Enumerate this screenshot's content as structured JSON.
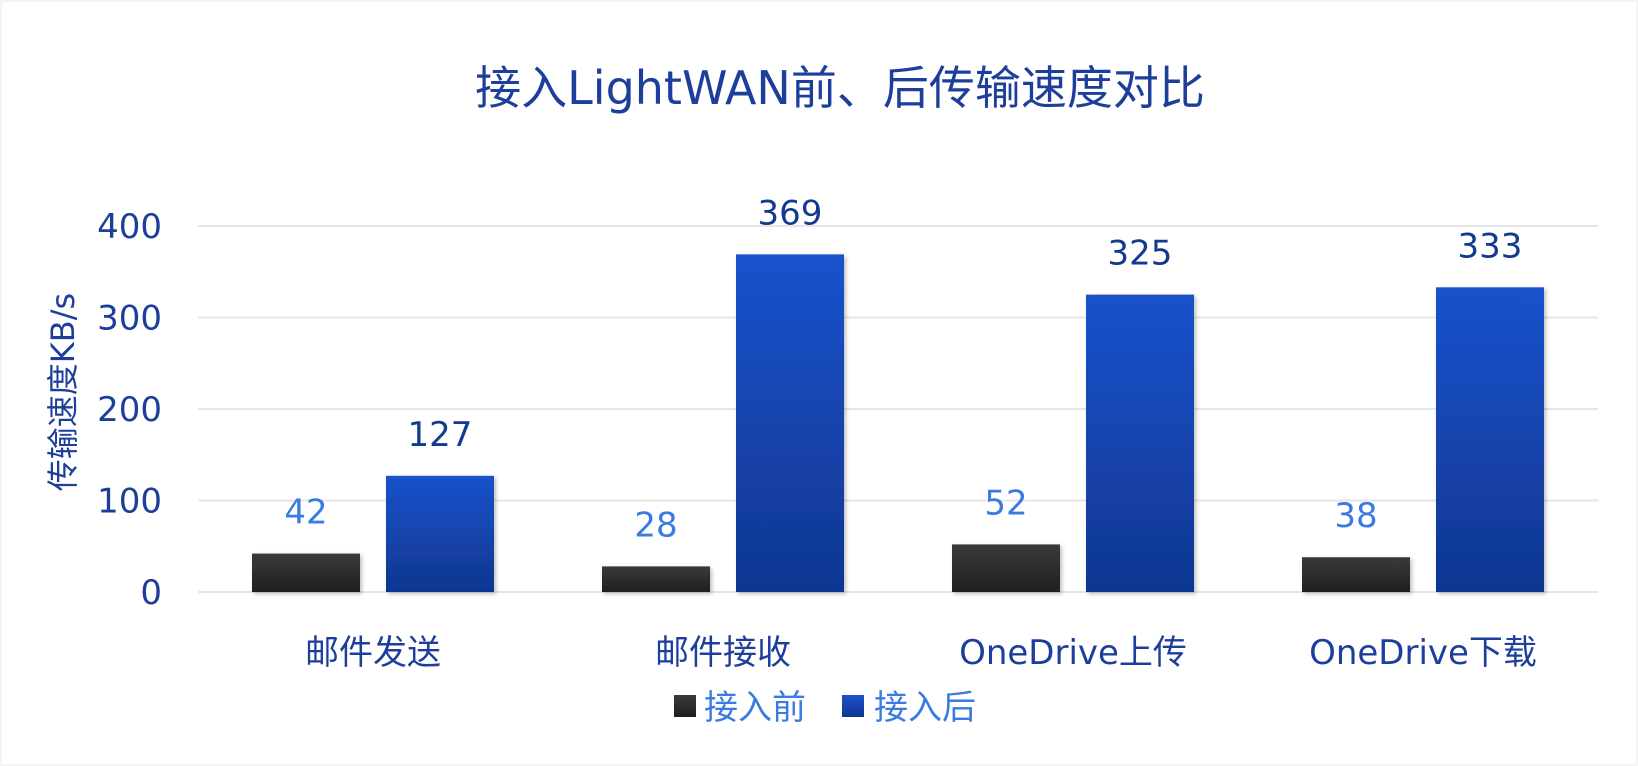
{
  "chart_data": {
    "type": "bar",
    "title": "接入LightWAN前、后传输速度对比",
    "ylabel": "传输速度KB/s",
    "xlabel": "",
    "ylim": [
      0,
      400
    ],
    "yticks": [
      "0",
      "100",
      "200",
      "300",
      "400"
    ],
    "ytick_values": [
      0,
      100,
      200,
      300,
      400
    ],
    "grid": true,
    "legend_position": "bottom",
    "categories": [
      "邮件发送",
      "邮件接收",
      "OneDrive上传",
      "OneDrive下载"
    ],
    "series": [
      {
        "name": "接入前",
        "values": [
          42,
          28,
          52,
          38
        ],
        "labels": [
          "42",
          "28",
          "52",
          "38"
        ],
        "color": "#2b2b2b"
      },
      {
        "name": "接入后",
        "values": [
          127,
          369,
          325,
          333
        ],
        "labels": [
          "127",
          "369",
          "325",
          "333"
        ],
        "color": "#1550c8"
      }
    ]
  },
  "colors": {
    "title": "#1d3f9b",
    "axis_text": "#1d3f9b",
    "label_before": "#3a7be0",
    "label_after": "#123a8f",
    "grid": "#e6e6e6",
    "before_top": "#3a3a3a",
    "before_bottom": "#1f1f1f",
    "after_top": "#1a52cc",
    "after_bottom": "#0f3690"
  }
}
